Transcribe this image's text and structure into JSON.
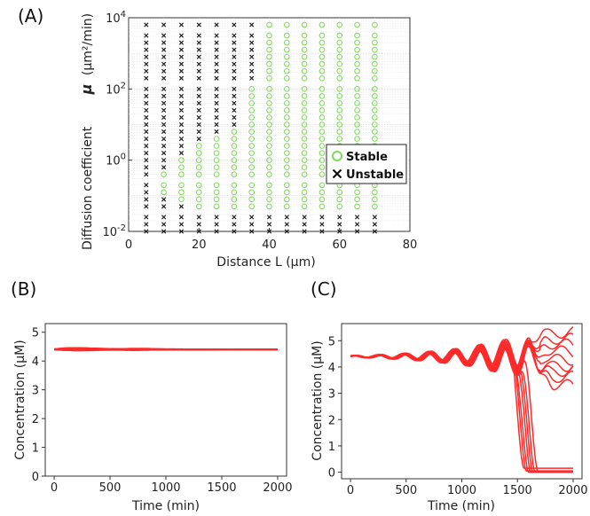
{
  "panels": {
    "a": {
      "label": "(A)"
    },
    "b": {
      "label": "(B)"
    },
    "c": {
      "label": "(C)"
    }
  },
  "colors": {
    "stable": "#7ed957",
    "unstable": "#222222",
    "trajectory": "#ff2a2a"
  },
  "chart_data": [
    {
      "id": "A",
      "type": "scatter",
      "title": "",
      "xlabel": "Distance L (μm)",
      "ylabel_bold": "μ",
      "ylabel_unit": "(μm²/min)",
      "ylabel_prefix": "Diffusion coefficient",
      "xlim": [
        0,
        80
      ],
      "ylim_log10": [
        -2,
        4
      ],
      "xticks": [
        "0",
        "20",
        "40",
        "60",
        "80"
      ],
      "yticks": [
        {
          "base": "10",
          "exp": "-2"
        },
        {
          "base": "10",
          "exp": "0"
        },
        {
          "base": "10",
          "exp": "2"
        },
        {
          "base": "10",
          "exp": "4"
        }
      ],
      "grid": true,
      "legend": [
        {
          "name": "Stable",
          "marker": "o"
        },
        {
          "name": "Unstable",
          "marker": "x"
        }
      ],
      "legend_position": "right",
      "x_values": [
        5,
        10,
        15,
        20,
        25,
        30,
        35,
        40,
        45,
        50,
        55,
        60,
        65,
        70
      ],
      "y_log10_values": [
        3.8,
        3.5,
        3.3,
        3.1,
        2.9,
        2.7,
        2.5,
        2.3,
        2.0,
        1.8,
        1.6,
        1.4,
        1.2,
        1.0,
        0.8,
        0.6,
        0.4,
        0.2,
        0.0,
        -0.2,
        -0.4,
        -0.7,
        -0.9,
        -1.1,
        -1.3,
        -1.6,
        -1.8,
        -2.0
      ],
      "unstable_counts": [
        7,
        7,
        7,
        7,
        7,
        7,
        7,
        7,
        6,
        6,
        6,
        6,
        6,
        6,
        5,
        4,
        3,
        3,
        2,
        2,
        1,
        1,
        1,
        2,
        3,
        14,
        14,
        14
      ]
    },
    {
      "id": "B",
      "type": "line",
      "xlabel": "Time (min)",
      "ylabel": "Concentration (μM)",
      "xlim": [
        -80,
        2080
      ],
      "ylim": [
        0,
        5.3
      ],
      "xticks": [
        0,
        500,
        1000,
        1500,
        2000
      ],
      "yticks": [
        0,
        1,
        2,
        3,
        4,
        5
      ],
      "grid": false,
      "baseline": 4.4,
      "series_count": 20,
      "band_key_t": [
        0,
        100,
        200,
        300,
        400,
        500,
        600,
        700,
        800,
        900,
        1000,
        1200,
        1500,
        2000
      ],
      "band_key_halfwidth": [
        0.02,
        0.07,
        0.09,
        0.08,
        0.06,
        0.05,
        0.04,
        0.06,
        0.05,
        0.03,
        0.02,
        0.02,
        0.01,
        0.01
      ],
      "band_offsets": [
        -0.3,
        -0.25,
        -0.18,
        -0.1,
        0.0,
        0.1,
        0.2,
        0.3,
        0.35,
        0.4,
        0.45,
        0.5,
        0.6
      ]
    },
    {
      "id": "C",
      "type": "line",
      "xlabel": "Time (min)",
      "ylabel": "Concentration (μM)",
      "xlim": [
        -80,
        2080
      ],
      "ylim": [
        -0.25,
        5.65
      ],
      "xticks": [
        0,
        500,
        1000,
        1500,
        2000
      ],
      "yticks": [
        0,
        1,
        2,
        3,
        4,
        5
      ],
      "grid": false,
      "baseline": 4.4,
      "oscillation_period": 225,
      "amp_key_t": [
        0,
        200,
        400,
        600,
        800,
        1000,
        1100,
        1200,
        1300,
        1400,
        1500
      ],
      "amp_key_a": [
        0.03,
        0.05,
        0.08,
        0.12,
        0.18,
        0.25,
        0.3,
        0.38,
        0.45,
        0.5,
        0.55
      ],
      "collapsed": [
        {
          "t_start": 1450,
          "t_end": 1560,
          "final": 0.15
        },
        {
          "t_start": 1470,
          "t_end": 1580,
          "final": 0.05
        },
        {
          "t_start": 1480,
          "t_end": 1600,
          "final": 0.0
        },
        {
          "t_start": 1500,
          "t_end": 1620,
          "final": 0.0
        },
        {
          "t_start": 1510,
          "t_end": 1640,
          "final": 0.0
        },
        {
          "t_start": 1530,
          "t_end": 1660,
          "final": 0.0
        },
        {
          "t_start": 1550,
          "t_end": 1690,
          "final": 0.0
        }
      ],
      "surviving": [
        {
          "t_start": 1540,
          "final": 5.3
        },
        {
          "t_start": 1560,
          "final": 5.05
        },
        {
          "t_start": 1560,
          "final": 4.85
        },
        {
          "t_start": 1580,
          "final": 4.6
        },
        {
          "t_start": 1590,
          "final": 4.3
        },
        {
          "t_start": 1600,
          "final": 4.05
        },
        {
          "t_start": 1610,
          "final": 3.85
        },
        {
          "t_start": 1620,
          "final": 3.6
        },
        {
          "t_start": 1630,
          "final": 3.3
        }
      ]
    }
  ]
}
